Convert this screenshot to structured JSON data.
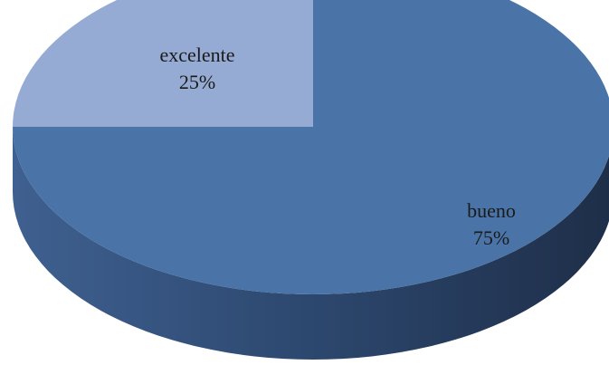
{
  "chart_data": {
    "type": "pie",
    "style": "3d",
    "title": "",
    "slices": [
      {
        "label": "bueno",
        "value": 75,
        "value_label": "75%",
        "color": "#4A74A8"
      },
      {
        "label": "excelente",
        "value": 25,
        "value_label": "25%",
        "color": "#95ABD3"
      }
    ],
    "legend": "none",
    "side_color_light": "#3F6090",
    "side_color_dark": "#1E2E48"
  }
}
